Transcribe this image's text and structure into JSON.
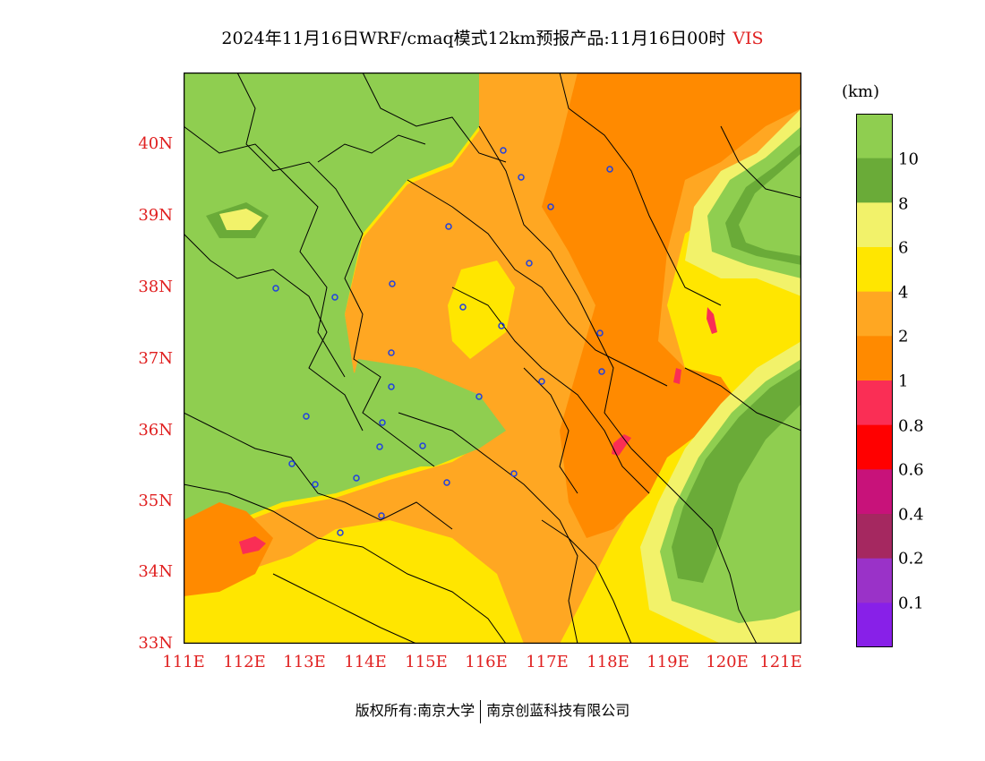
{
  "title": {
    "main": "2024年11月16日WRF/cmaq模式12km预报产品:11月16日00时",
    "variable": "VIS"
  },
  "map": {
    "lat_labels": [
      "40N",
      "39N",
      "38N",
      "37N",
      "36N",
      "35N",
      "34N",
      "33N"
    ],
    "lon_labels": [
      "111E",
      "112E",
      "113E",
      "114E",
      "115E",
      "116E",
      "117E",
      "118E",
      "119E",
      "120E",
      "121E"
    ]
  },
  "colorbar": {
    "units": "(km)",
    "labels": [
      "10",
      "8",
      "6",
      "4",
      "2",
      "1",
      "0.8",
      "0.6",
      "0.4",
      "0.2",
      "0.1"
    ],
    "colors": [
      "#8fce50",
      "#6aab38",
      "#f2f26a",
      "#ffe600",
      "#ffa722",
      "#ff8a00",
      "#fa2e55",
      "#ff0000",
      "#c8127a",
      "#a52860",
      "#9a32c8",
      "#8820e8"
    ]
  },
  "footer": {
    "left": "版权所有:南京大学",
    "right": "南京创蓝科技有限公司"
  }
}
